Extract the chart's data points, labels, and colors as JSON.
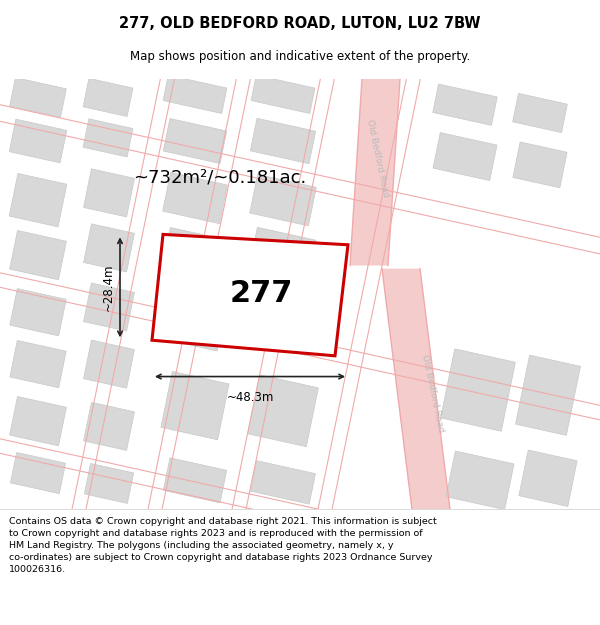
{
  "title": "277, OLD BEDFORD ROAD, LUTON, LU2 7BW",
  "subtitle": "Map shows position and indicative extent of the property.",
  "footer": "Contains OS data © Crown copyright and database right 2021. This information is subject\nto Crown copyright and database rights 2023 and is reproduced with the permission of\nHM Land Registry. The polygons (including the associated geometry, namely x, y\nco-ordinates) are subject to Crown copyright and database rights 2023 Ordnance Survey\n100026316.",
  "area_label": "~732m²/~0.181ac.",
  "width_label": "~48.3m",
  "height_label": "~28.4m",
  "plot_label": "277",
  "map_bg": "#f2f0f0",
  "road_line_color": "#f0aaaa",
  "road_fill_color": "#f5cccc",
  "building_fill": "#d8d8d8",
  "building_edge": "#c8c8c8",
  "road_label_color": "#bbbbbb",
  "plot_outline_color": "#cc0000",
  "plot_fill": "#ffffff",
  "dim_line_color": "#222222",
  "title_fontsize": 10.5,
  "subtitle_fontsize": 8.5,
  "footer_fontsize": 6.8,
  "area_fontsize": 13,
  "plot_num_fontsize": 22,
  "dim_fontsize": 8.5
}
